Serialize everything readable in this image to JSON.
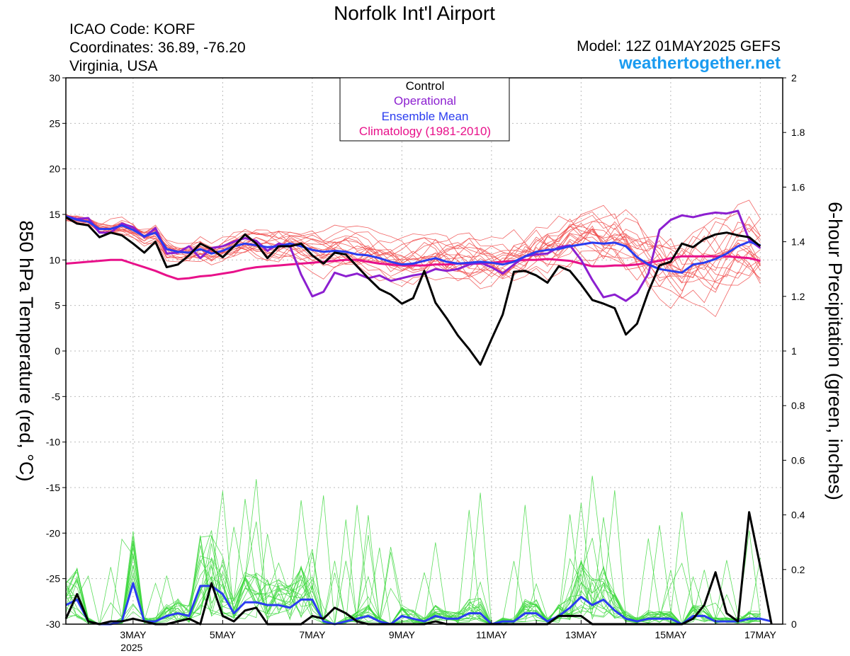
{
  "header": {
    "title": "Norfolk Int'l Airport",
    "icao": "ICAO Code: KORF",
    "coords": "Coordinates: 36.89, -76.20",
    "region": "Virginia, USA",
    "model": "Model: 12Z 01MAY2025 GEFS",
    "site": "weathertogether.net"
  },
  "legend": {
    "items": [
      {
        "label": "Control",
        "color": "#000000"
      },
      {
        "label": "Operational",
        "color": "#8c1fd0"
      },
      {
        "label": "Ensemble Mean",
        "color": "#2a3cf0"
      },
      {
        "label": "Climatology (1981-2010)",
        "color": "#e8118a"
      }
    ]
  },
  "colors": {
    "members": "#f04a4a",
    "precip_members": "#3fd83f",
    "grid": "#bbbbbb"
  },
  "chart_data": {
    "type": "line",
    "ylabel_left": "850 hPa Temperature (red, °C)",
    "ylabel_right": "6-hour Precipitation (green, inches)",
    "ylim_left": [
      -30,
      30
    ],
    "ylim_right": [
      0,
      2
    ],
    "xlim_days": [
      "2025-05-01T12Z",
      "2025-05-17T12Z"
    ],
    "left_ticks": [
      "30",
      "25",
      "20",
      "15",
      "10",
      "5",
      "0",
      "-5",
      "-10",
      "-15",
      "-20",
      "-25",
      "-30"
    ],
    "right_ticks": [
      "2",
      "1.8",
      "1.6",
      "1.4",
      "1.2",
      "1",
      "0.8",
      "0.6",
      "0.4",
      "0.2",
      "0"
    ],
    "x_ticks": [
      {
        "day": 3,
        "label": "3MAY",
        "sub": "2025"
      },
      {
        "day": 5,
        "label": "5MAY",
        "sub": ""
      },
      {
        "day": 7,
        "label": "7MAY",
        "sub": ""
      },
      {
        "day": 9,
        "label": "9MAY",
        "sub": ""
      },
      {
        "day": 11,
        "label": "11MAY",
        "sub": ""
      },
      {
        "day": 13,
        "label": "13MAY",
        "sub": ""
      },
      {
        "day": 15,
        "label": "15MAY",
        "sub": ""
      },
      {
        "day": 17,
        "label": "17MAY",
        "sub": ""
      }
    ],
    "grid": true,
    "legend_position": "top-center",
    "time_step_hours": 6,
    "series": [
      {
        "name": "Control",
        "color": "#000000",
        "temp": [
          14.7,
          14.0,
          13.8,
          12.5,
          13.0,
          12.7,
          11.8,
          10.8,
          12.0,
          9.2,
          9.5,
          10.5,
          11.8,
          11.2,
          10.3,
          11.5,
          12.8,
          11.8,
          10.2,
          11.5,
          11.5,
          11.8,
          10.5,
          9.6,
          10.8,
          10.6,
          9.3,
          8.0,
          6.8,
          6.2,
          5.2,
          5.8,
          8.8,
          5.3,
          3.6,
          1.7,
          0.2,
          -1.5,
          1.3,
          4.0,
          8.7,
          8.8,
          8.3,
          7.5,
          9.3,
          8.8,
          7.3,
          5.6,
          5.2,
          4.7,
          1.8,
          3.0,
          6.5,
          9.4,
          9.8,
          11.8,
          11.4,
          12.3,
          12.8,
          13.0,
          12.7,
          12.5,
          11.5
        ],
        "precip": [
          0.02,
          0.11,
          0.01,
          0,
          0.01,
          0.01,
          0.02,
          0.01,
          0,
          0,
          0.01,
          0.02,
          0,
          0.15,
          0.03,
          0.01,
          0.05,
          0.06,
          0,
          0,
          0,
          0,
          0.03,
          0.02,
          0.06,
          0.04,
          0.01,
          0,
          0,
          0,
          0,
          0,
          0,
          0.01,
          0,
          0,
          0,
          0,
          0,
          0,
          0,
          0,
          0,
          0,
          0.03,
          0.03,
          0.03,
          0,
          0,
          0,
          0,
          0,
          0,
          0,
          0,
          0,
          0.02,
          0.07,
          0.19,
          0.04,
          0.01,
          0.41,
          0.21,
          0
        ]
      },
      {
        "name": "Operational",
        "color": "#8c1fd0",
        "temp": [
          14.8,
          14.5,
          14.6,
          13.0,
          13.0,
          14.0,
          13.6,
          12.5,
          13.5,
          10.7,
          10.8,
          11.5,
          10.2,
          11.3,
          11.5,
          12.0,
          12.4,
          12.1,
          11.0,
          11.8,
          11.5,
          8.4,
          6.0,
          6.5,
          8.6,
          8.2,
          8.5,
          8.0,
          8.3,
          7.7,
          8.0,
          8.3,
          8.5,
          9.0,
          8.8,
          9.0,
          9.5,
          9.7,
          9.2,
          8.5,
          9.5,
          10.4,
          10.6,
          10.7,
          11.4,
          11.6,
          10.0,
          7.8,
          5.9,
          6.2,
          5.5,
          6.4,
          8.5,
          13.3,
          14.4,
          14.9,
          14.7,
          15.0,
          15.2,
          15.1,
          15.4,
          12.2,
          11.3
        ]
      },
      {
        "name": "Ensemble Mean",
        "color": "#2a3cf0",
        "temp": [
          14.8,
          14.4,
          14.2,
          13.4,
          13.4,
          13.8,
          13.3,
          12.6,
          13.0,
          11.2,
          10.9,
          10.8,
          11.2,
          10.7,
          11.0,
          11.5,
          11.8,
          11.6,
          11.4,
          11.5,
          11.8,
          11.5,
          11.1,
          10.9,
          11.0,
          10.9,
          10.6,
          10.5,
          10.2,
          9.8,
          9.5,
          9.6,
          9.9,
          10.2,
          9.8,
          9.6,
          9.7,
          9.8,
          9.7,
          9.5,
          9.8,
          10.4,
          10.9,
          11.1,
          11.2,
          11.5,
          11.7,
          11.9,
          11.8,
          11.9,
          11.5,
          10.3,
          9.5,
          9.0,
          8.8,
          8.6,
          9.5,
          9.7,
          10.1,
          10.7,
          11.5,
          12.0,
          11.6
        ],
        "precip": [
          0.07,
          0.09,
          0.01,
          0,
          0,
          0.01,
          0.15,
          0.01,
          0.01,
          0.03,
          0.04,
          0.03,
          0.14,
          0.14,
          0.11,
          0.04,
          0.08,
          0.08,
          0.07,
          0.07,
          0.06,
          0.09,
          0.09,
          0.01,
          0,
          0.01,
          0.02,
          0.03,
          0.01,
          0,
          0.03,
          0.02,
          0.01,
          0.03,
          0.02,
          0.02,
          0.04,
          0.04,
          0,
          0.01,
          0.01,
          0.04,
          0.04,
          0.01,
          0.03,
          0.06,
          0.1,
          0.07,
          0.09,
          0.05,
          0.02,
          0.01,
          0.02,
          0.02,
          0.02,
          0,
          0.03,
          0.03,
          0.01,
          0.01,
          0.01,
          0.02,
          0.02,
          0.01
        ]
      },
      {
        "name": "Climatology (1981-2010)",
        "color": "#e8118a",
        "temp": [
          9.6,
          9.7,
          9.8,
          9.9,
          10.0,
          10.0,
          9.6,
          9.2,
          8.8,
          8.3,
          7.9,
          8.0,
          8.2,
          8.3,
          8.5,
          8.7,
          9.0,
          9.2,
          9.3,
          9.4,
          9.5,
          9.6,
          9.7,
          9.8,
          9.9,
          10.0,
          10.0,
          9.8,
          9.6,
          9.5,
          9.4,
          9.4,
          9.4,
          9.5,
          9.5,
          9.6,
          9.6,
          9.6,
          9.7,
          9.8,
          9.9,
          10.0,
          10.0,
          10.1,
          10.0,
          9.9,
          9.6,
          9.3,
          9.3,
          9.4,
          9.4,
          9.5,
          9.7,
          9.9,
          10.2,
          10.4,
          10.4,
          10.4,
          10.4,
          10.4,
          10.3,
          10.2,
          9.9
        ]
      }
    ]
  }
}
